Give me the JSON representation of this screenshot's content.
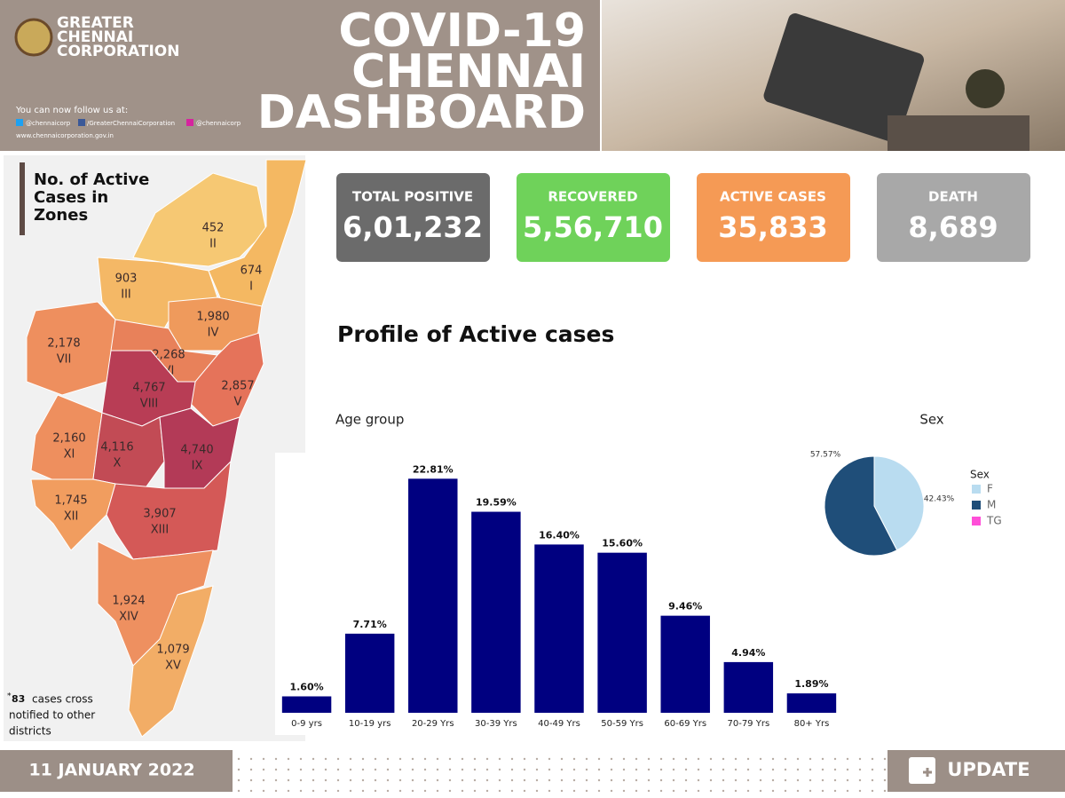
{
  "header": {
    "logo_text": [
      "GREATER",
      "CHENNAI",
      "CORPORATION"
    ],
    "follow": "You can now follow us at:",
    "socials": [
      "@chennaicorp",
      "/GreaterChennaiCorporation",
      "@chennaicorp"
    ],
    "website": "www.chennaicorporation.gov.in",
    "title": [
      "COVID-19",
      "CHENNAI",
      "DASHBOARD"
    ]
  },
  "map": {
    "title": [
      "No. of Active",
      "Cases in",
      "Zones"
    ],
    "zones": [
      {
        "count": "452",
        "zone": "II",
        "color": "#f6c873"
      },
      {
        "count": "674",
        "zone": "I",
        "color": "#f4b862"
      },
      {
        "count": "903",
        "zone": "III",
        "color": "#f4b866"
      },
      {
        "count": "1,980",
        "zone": "IV",
        "color": "#ef9a5c"
      },
      {
        "count": "2,178",
        "zone": "VII",
        "color": "#ee8f5e"
      },
      {
        "count": "2,268",
        "zone": "VI",
        "color": "#e8815a"
      },
      {
        "count": "2,857",
        "zone": "V",
        "color": "#e5735a"
      },
      {
        "count": "4,767",
        "zone": "VIII",
        "color": "#b83d55"
      },
      {
        "count": "2,160",
        "zone": "XI",
        "color": "#ee8f5e"
      },
      {
        "count": "4,116",
        "zone": "X",
        "color": "#c24b55"
      },
      {
        "count": "4,740",
        "zone": "IX",
        "color": "#b33a57"
      },
      {
        "count": "1,745",
        "zone": "XII",
        "color": "#f19d5f"
      },
      {
        "count": "3,907",
        "zone": "XIII",
        "color": "#d45957"
      },
      {
        "count": "1,924",
        "zone": "XIV",
        "color": "#ee9060"
      },
      {
        "count": "1,079",
        "zone": "XV",
        "color": "#f2ad66"
      }
    ],
    "note": {
      "marker": "*",
      "count": "83",
      "text": [
        "cases cross",
        "notified to other",
        "districts"
      ]
    }
  },
  "cards": [
    {
      "label": "TOTAL POSITIVE",
      "value": "6,01,232",
      "color": "#6b6b6b"
    },
    {
      "label": "RECOVERED",
      "value": "5,56,710",
      "color": "#6fd25a"
    },
    {
      "label": "ACTIVE CASES",
      "value": "35,833",
      "color": "#f59a55"
    },
    {
      "label": "DEATH",
      "value": "8,689",
      "color": "#a8a8a8"
    }
  ],
  "section_title": "Profile of Active cases",
  "chart_data": [
    {
      "type": "bar",
      "title": "Age group",
      "categories": [
        "0-9 yrs",
        "10-19 yrs",
        "20-29 Yrs",
        "30-39 Yrs",
        "40-49 Yrs",
        "50-59 Yrs",
        "60-69 Yrs",
        "70-79 Yrs",
        "80+ Yrs"
      ],
      "values": [
        1.6,
        7.71,
        22.81,
        19.59,
        16.4,
        15.6,
        9.46,
        4.94,
        1.89
      ],
      "value_labels": [
        "1.60%",
        "7.71%",
        "22.81%",
        "19.59%",
        "16.40%",
        "15.60%",
        "9.46%",
        "4.94%",
        "1.89%"
      ],
      "color": "#000080",
      "ylim": [
        0,
        25
      ]
    },
    {
      "type": "pie",
      "title": "Sex",
      "legend_title": "Sex",
      "categories": [
        "F",
        "M",
        "TG"
      ],
      "values": [
        42.43,
        57.57,
        0
      ],
      "value_labels": [
        "42.43%",
        "57.57%",
        null
      ],
      "colors": [
        "#b9dcf0",
        "#1f4e79",
        "#ff4fd8"
      ]
    }
  ],
  "footer": {
    "date": "11 JANUARY 2022",
    "button": "UPDATE"
  }
}
